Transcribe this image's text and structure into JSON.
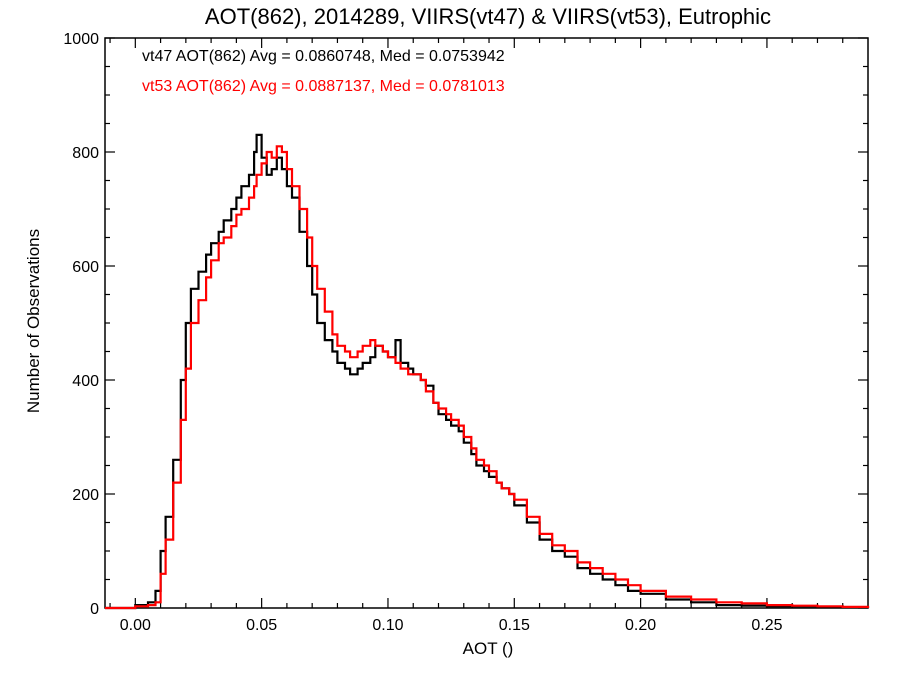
{
  "chart_data": {
    "type": "line",
    "title": "AOT(862), 2014289, VIIRS(vt47) & VIIRS(vt53), Eutrophic",
    "xlabel": "AOT ()",
    "ylabel": "Number of Observations",
    "xlim": [
      -0.012,
      0.29
    ],
    "ylim": [
      0,
      1000
    ],
    "x_ticks": [
      0.0,
      0.05,
      0.1,
      0.15,
      0.2,
      0.25
    ],
    "x_tick_labels": [
      "0.00",
      "0.05",
      "0.10",
      "0.15",
      "0.20",
      "0.25"
    ],
    "y_ticks": [
      0,
      200,
      400,
      600,
      800,
      1000
    ],
    "y_tick_labels": [
      "0",
      "200",
      "400",
      "600",
      "800",
      "1000"
    ],
    "grid": false,
    "legend_position": "top-left",
    "x": [
      -0.012,
      0.0,
      0.005,
      0.008,
      0.01,
      0.012,
      0.015,
      0.018,
      0.02,
      0.022,
      0.025,
      0.028,
      0.03,
      0.033,
      0.035,
      0.038,
      0.04,
      0.042,
      0.045,
      0.047,
      0.048,
      0.05,
      0.052,
      0.054,
      0.056,
      0.058,
      0.06,
      0.062,
      0.065,
      0.068,
      0.07,
      0.072,
      0.075,
      0.078,
      0.08,
      0.083,
      0.085,
      0.088,
      0.09,
      0.093,
      0.095,
      0.098,
      0.1,
      0.103,
      0.105,
      0.108,
      0.11,
      0.113,
      0.115,
      0.118,
      0.12,
      0.123,
      0.125,
      0.128,
      0.13,
      0.133,
      0.135,
      0.138,
      0.14,
      0.143,
      0.145,
      0.148,
      0.15,
      0.155,
      0.16,
      0.165,
      0.17,
      0.175,
      0.18,
      0.185,
      0.19,
      0.195,
      0.2,
      0.21,
      0.22,
      0.23,
      0.24,
      0.25,
      0.26,
      0.27,
      0.28,
      0.29
    ],
    "series": [
      {
        "name": "vt47",
        "color": "#000000",
        "values": [
          0,
          5,
          10,
          30,
          100,
          160,
          260,
          400,
          500,
          560,
          590,
          620,
          640,
          660,
          680,
          700,
          720,
          740,
          760,
          800,
          830,
          790,
          760,
          770,
          790,
          770,
          740,
          720,
          660,
          600,
          550,
          500,
          470,
          450,
          430,
          420,
          410,
          420,
          430,
          440,
          460,
          450,
          440,
          470,
          430,
          420,
          410,
          400,
          390,
          360,
          340,
          330,
          320,
          310,
          290,
          270,
          250,
          240,
          230,
          220,
          210,
          200,
          180,
          150,
          120,
          100,
          90,
          70,
          60,
          50,
          40,
          30,
          25,
          15,
          10,
          5,
          4,
          3,
          3,
          2,
          1,
          0
        ]
      },
      {
        "name": "vt53",
        "color": "#ff0000",
        "values": [
          0,
          3,
          5,
          10,
          60,
          120,
          220,
          330,
          420,
          500,
          540,
          580,
          610,
          640,
          650,
          670,
          690,
          700,
          720,
          740,
          760,
          780,
          800,
          790,
          810,
          800,
          770,
          740,
          700,
          650,
          600,
          560,
          520,
          480,
          460,
          450,
          440,
          450,
          460,
          470,
          460,
          450,
          440,
          430,
          420,
          410,
          410,
          400,
          380,
          360,
          350,
          340,
          330,
          320,
          300,
          280,
          260,
          250,
          240,
          220,
          210,
          200,
          190,
          160,
          130,
          110,
          100,
          80,
          70,
          60,
          50,
          40,
          30,
          20,
          15,
          10,
          8,
          5,
          4,
          3,
          2,
          0
        ]
      }
    ],
    "annotations": [
      {
        "text": "vt47 AOT(862) Avg = 0.0860748, Med = 0.0753942",
        "color": "#000000"
      },
      {
        "text": "vt53 AOT(862) Avg = 0.0887137, Med = 0.0781013",
        "color": "#ff0000"
      }
    ]
  }
}
